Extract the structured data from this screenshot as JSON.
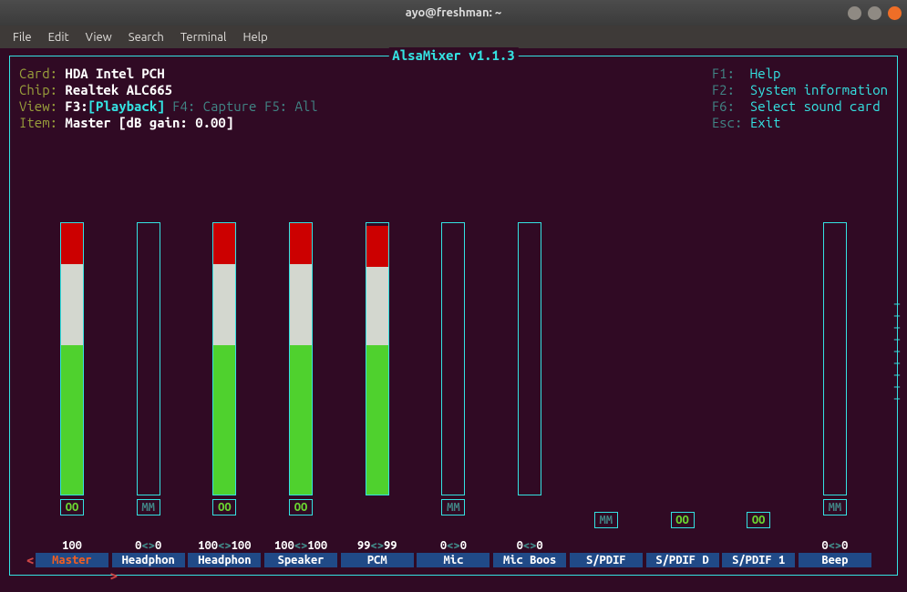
{
  "window": {
    "title": "ayo@freshman: ~",
    "controls": {
      "minimize_color": "#8f8a83",
      "maximize_color": "#8f8a83",
      "close_color": "#ef6e27"
    }
  },
  "menubar": [
    "File",
    "Edit",
    "View",
    "Search",
    "Terminal",
    "Help"
  ],
  "app": {
    "title": "AlsaMixer v1.1.3",
    "card_label": "Card:",
    "card": "HDA Intel PCH",
    "chip_label": "Chip:",
    "chip": "Realtek ALC665",
    "view_label": "View:",
    "view_f3": "F3:",
    "view_playback": "[Playback]",
    "view_f4": "F4: Capture",
    "view_f5": "F5: All",
    "item_label": "Item:",
    "item": "Master [dB gain: 0.00]"
  },
  "hotkeys": [
    {
      "key": "F1:",
      "action": "Help"
    },
    {
      "key": "F2:",
      "action": "System information"
    },
    {
      "key": "F6:",
      "action": "Select sound card"
    },
    {
      "key": "Esc:",
      "action": "Exit"
    }
  ],
  "colors": {
    "frame": "#34e2e2",
    "bg": "#300a24",
    "bar_green": "#4fd12e",
    "bar_white": "#d3d7cf",
    "bar_red": "#cc0000",
    "name_bg": "#204a87",
    "selected_fg": "#f15d22"
  },
  "channels": [
    {
      "name": "Master",
      "selected": true,
      "level": 100,
      "fill": [
        55,
        30,
        15
      ],
      "has_bar": true,
      "mute": "OO",
      "mute_state": "unmuted",
      "vol": "100"
    },
    {
      "name": "Headphon",
      "level": 0,
      "fill": null,
      "has_bar": true,
      "mute": "MM",
      "mute_state": "muted",
      "vol": "0<>0"
    },
    {
      "name": "Headphon",
      "level": 100,
      "fill": [
        55,
        30,
        15
      ],
      "has_bar": true,
      "mute": "OO",
      "mute_state": "unmuted",
      "vol": "100<>100"
    },
    {
      "name": "Speaker",
      "level": 100,
      "fill": [
        55,
        30,
        15
      ],
      "has_bar": true,
      "mute": "OO",
      "mute_state": "unmuted",
      "vol": "100<>100"
    },
    {
      "name": "PCM",
      "level": 99,
      "fill": [
        55,
        29,
        15
      ],
      "has_bar": true,
      "mute": null,
      "vol": "99<>99"
    },
    {
      "name": "Mic",
      "level": 0,
      "fill": null,
      "has_bar": true,
      "mute": "MM",
      "mute_state": "muted",
      "vol": "0<>0"
    },
    {
      "name": "Mic Boos",
      "level": 0,
      "fill": null,
      "has_bar": true,
      "mute": null,
      "vol": "0<>0"
    },
    {
      "name": "S/PDIF",
      "has_bar": false,
      "mute": "MM",
      "mute_state": "muted",
      "vol": ""
    },
    {
      "name": "S/PDIF D",
      "has_bar": false,
      "mute": "OO",
      "mute_state": "unmuted",
      "vol": ""
    },
    {
      "name": "S/PDIF 1",
      "has_bar": false,
      "mute": "OO",
      "mute_state": "unmuted",
      "vol": ""
    },
    {
      "name": "Beep",
      "level": 0,
      "fill": null,
      "has_bar": true,
      "mute": "MM",
      "mute_state": "muted",
      "vol": "0<>0"
    }
  ]
}
